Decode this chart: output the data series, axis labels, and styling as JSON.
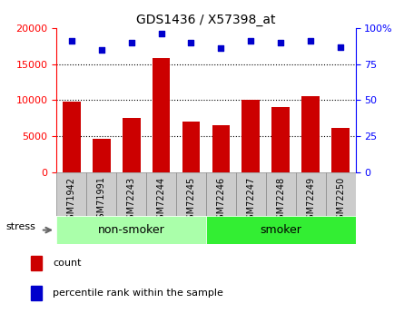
{
  "title": "GDS1436 / X57398_at",
  "categories": [
    "GSM71942",
    "GSM71991",
    "GSM72243",
    "GSM72244",
    "GSM72245",
    "GSM72246",
    "GSM72247",
    "GSM72248",
    "GSM72249",
    "GSM72250"
  ],
  "counts": [
    9800,
    4600,
    7500,
    15800,
    7000,
    6500,
    10100,
    9000,
    10500,
    6100
  ],
  "percentile_ranks": [
    91,
    85,
    90,
    96,
    90,
    86,
    91,
    90,
    91,
    87
  ],
  "bar_color": "#cc0000",
  "dot_color": "#0000cc",
  "ylim_left": [
    0,
    20000
  ],
  "ylim_right": [
    0,
    100
  ],
  "yticks_left": [
    0,
    5000,
    10000,
    15000,
    20000
  ],
  "yticks_right": [
    0,
    25,
    50,
    75,
    100
  ],
  "groups": [
    {
      "label": "non-smoker",
      "start": 0,
      "end": 5,
      "color": "#aaffaa"
    },
    {
      "label": "smoker",
      "start": 5,
      "end": 10,
      "color": "#33ee33"
    }
  ],
  "stress_label": "stress",
  "legend_items": [
    {
      "label": "count",
      "color": "#cc0000"
    },
    {
      "label": "percentile rank within the sample",
      "color": "#0000cc"
    }
  ],
  "tick_bg_color": "#cccccc",
  "border_color": "#888888"
}
